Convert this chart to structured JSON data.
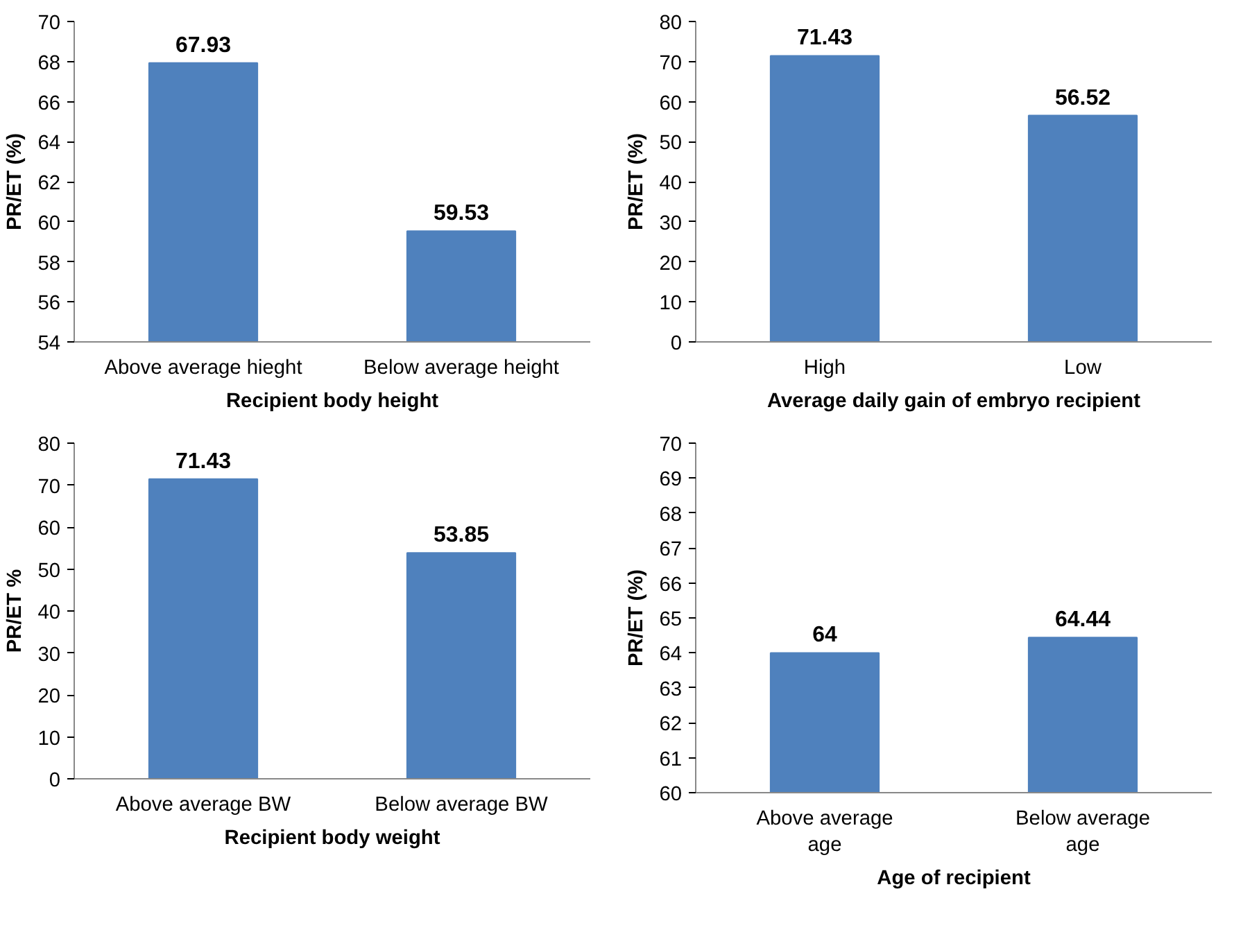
{
  "chart_data": [
    {
      "type": "bar",
      "categories": [
        "Above average hieght",
        "Below average height"
      ],
      "values": [
        67.93,
        59.53
      ],
      "color": "#4f81bd",
      "ylim": [
        54,
        70
      ],
      "yticks": [
        54,
        56,
        58,
        60,
        62,
        64,
        66,
        68,
        70
      ],
      "ylabel": "PR/ET (%)",
      "xlabel": "Recipient body height",
      "data_labels": true,
      "grid": false
    },
    {
      "type": "bar",
      "categories": [
        "High",
        "Low"
      ],
      "values": [
        71.43,
        56.52
      ],
      "color": "#4f81bd",
      "ylim": [
        0,
        80
      ],
      "yticks": [
        0,
        10,
        20,
        30,
        40,
        50,
        60,
        70,
        80
      ],
      "ylabel": "PR/ET (%)",
      "xlabel": "Average daily gain of embryo recipient",
      "data_labels": true,
      "grid": false
    },
    {
      "type": "bar",
      "categories": [
        "Above average BW",
        "Below average BW"
      ],
      "values": [
        71.43,
        53.85
      ],
      "color": "#4f81bd",
      "ylim": [
        0,
        80
      ],
      "yticks": [
        0,
        10,
        20,
        30,
        40,
        50,
        60,
        70,
        80
      ],
      "ylabel": "PR/ET %",
      "xlabel": "Recipient body weight",
      "data_labels": true,
      "grid": false
    },
    {
      "type": "bar",
      "categories": [
        "Above average age",
        "Below average age"
      ],
      "values": [
        64,
        64.44
      ],
      "color": "#4f81bd",
      "ylim": [
        60,
        70
      ],
      "yticks": [
        60,
        61,
        62,
        63,
        64,
        65,
        66,
        67,
        68,
        69,
        70
      ],
      "ylabel": "PR/ET (%)",
      "xlabel": "Age of recipient",
      "data_labels": true,
      "grid": false
    }
  ]
}
